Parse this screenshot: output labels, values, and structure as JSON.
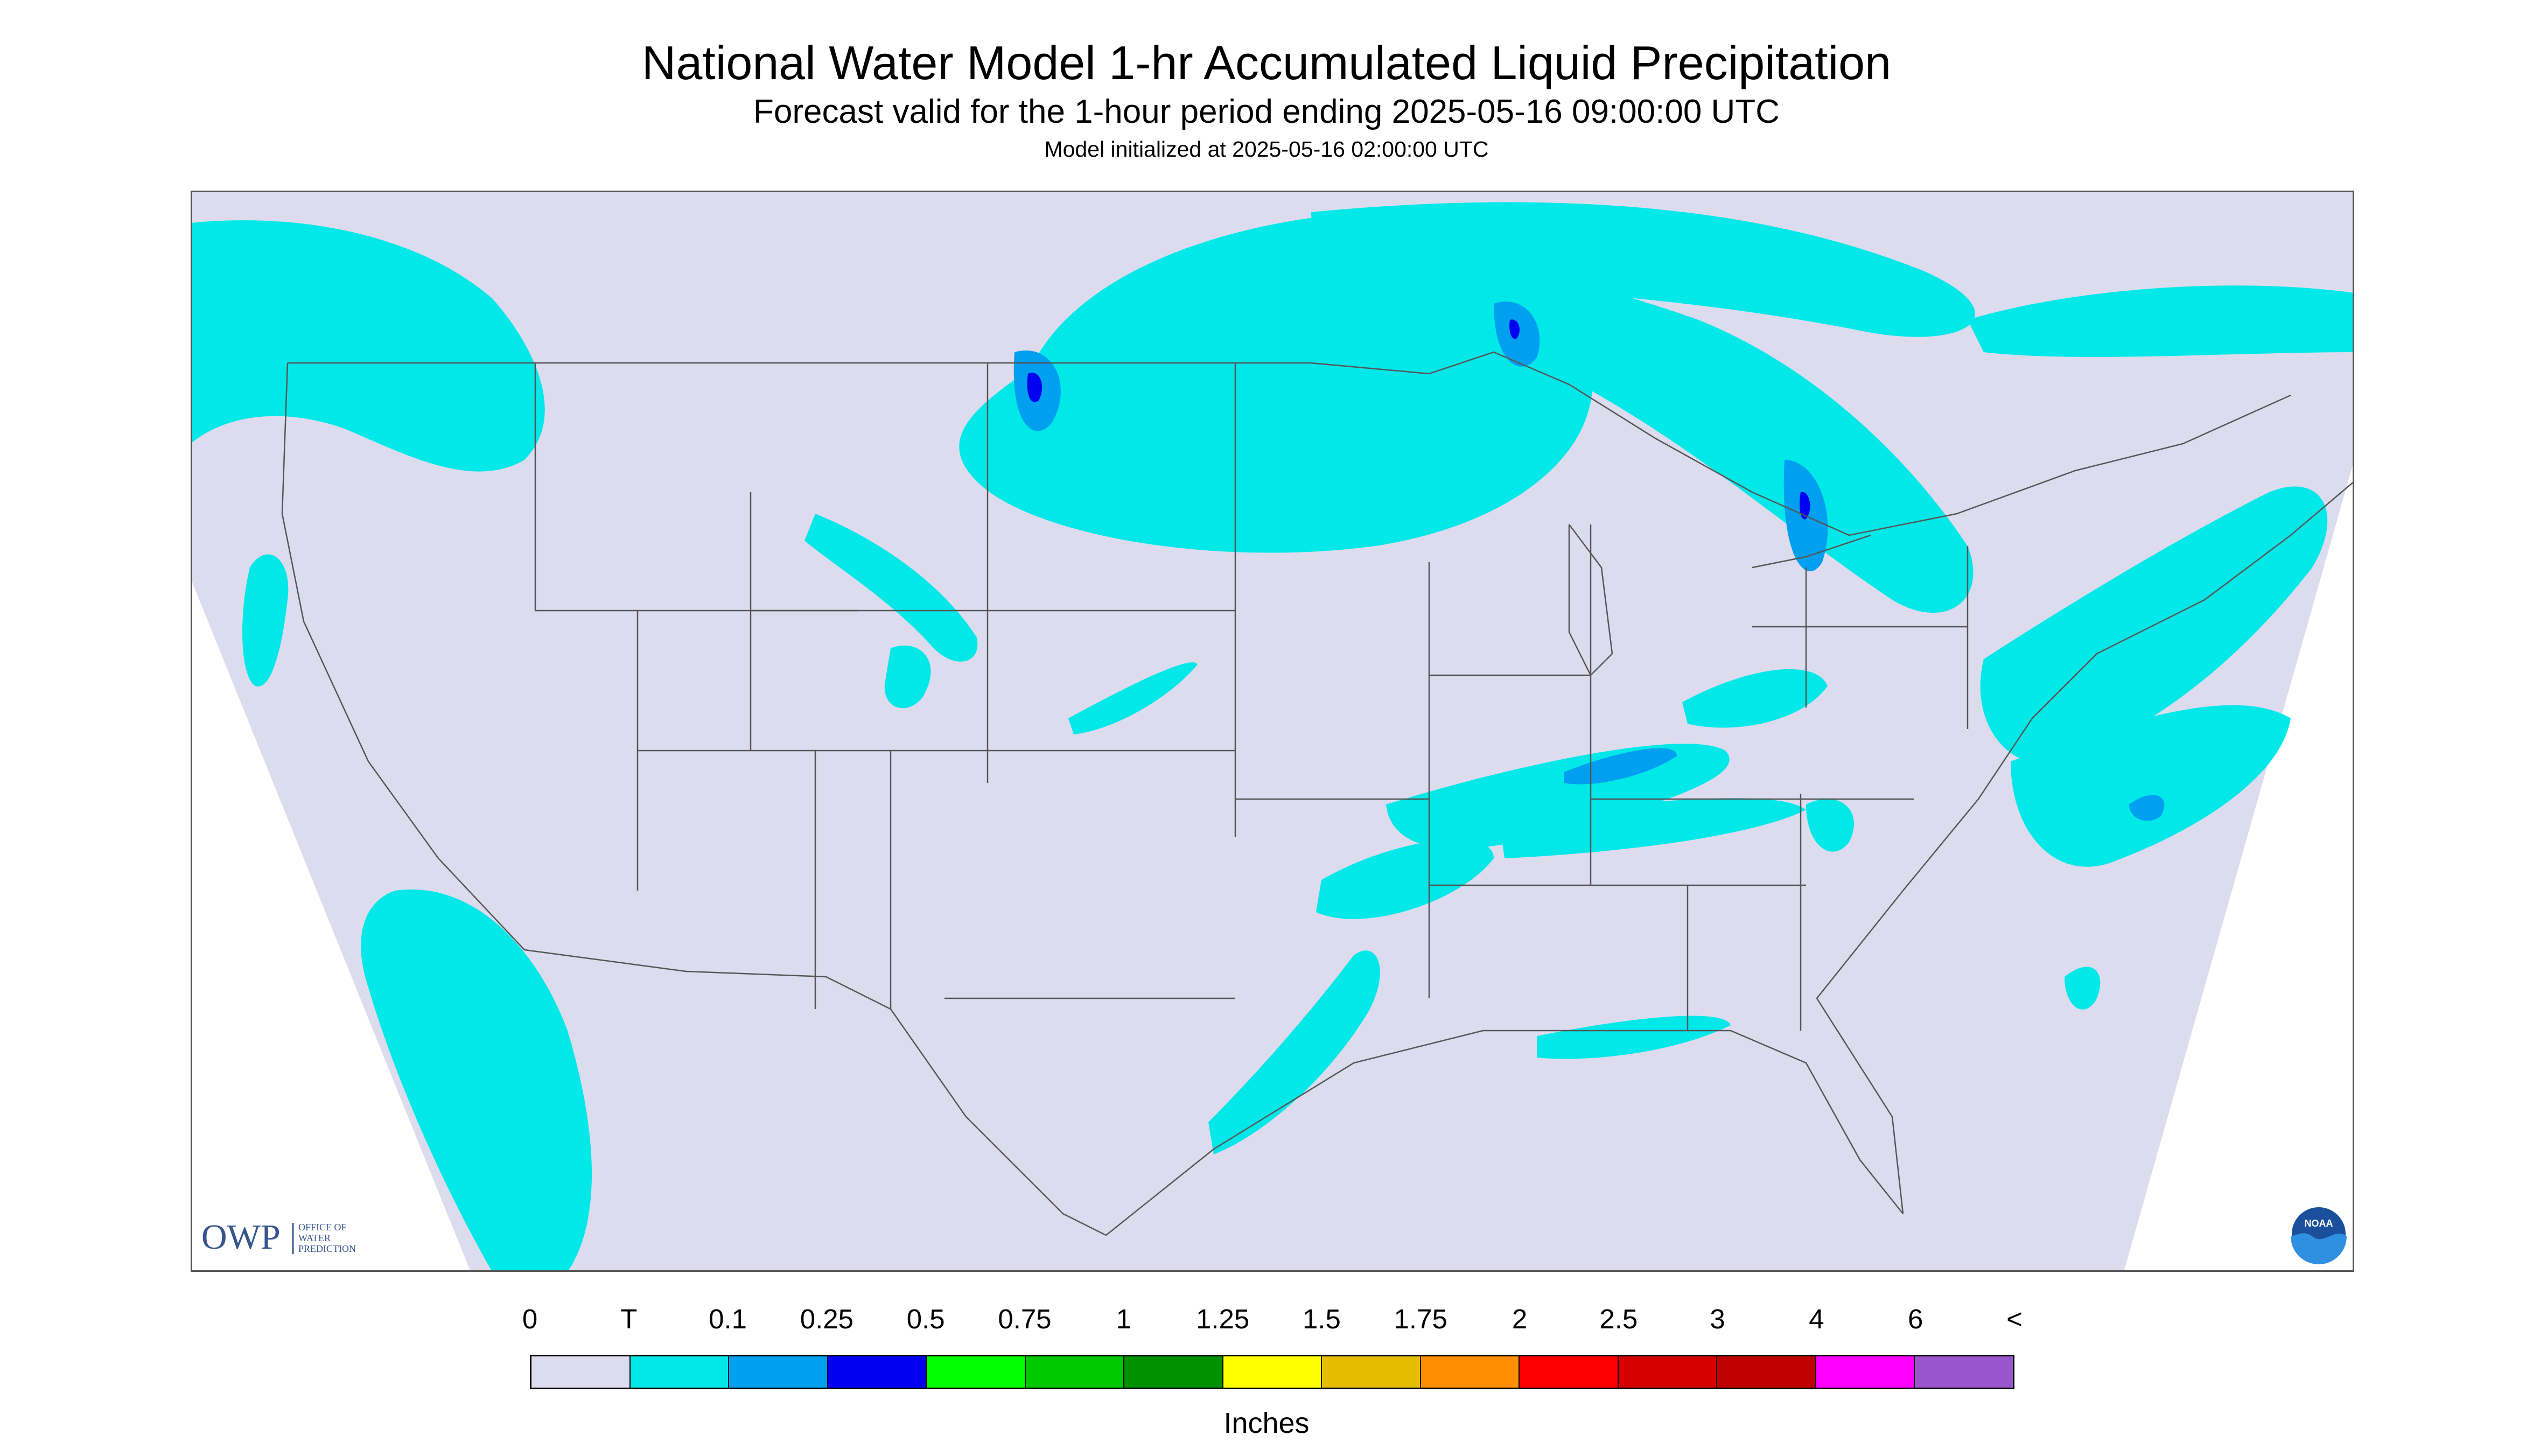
{
  "title": "National Water Model 1-hr Accumulated Liquid Precipitation",
  "subtitle": "Forecast valid for the 1-hour period ending 2025-05-16 09:00:00 UTC",
  "init_line": "Model initialized at 2025-05-16 02:00:00 UTC",
  "logos": {
    "owp_mark": "OWP",
    "owp_text": [
      "OFFICE OF",
      "WATER",
      "PREDICTION"
    ],
    "noaa_mark": "NOAA"
  },
  "colors": {
    "background": "#dcdcee",
    "no_data": "#ffffff",
    "border_lines": "#555555"
  },
  "legend": {
    "units": "Inches",
    "labels": [
      "0",
      "T",
      "0.1",
      "0.25",
      "0.5",
      "0.75",
      "1",
      "1.25",
      "1.5",
      "1.75",
      "2",
      "2.5",
      "3",
      "4",
      "6",
      "<"
    ],
    "colors": [
      "#dcdcee",
      "#00e8e8",
      "#009fef",
      "#0000f0",
      "#00ff00",
      "#00c800",
      "#009000",
      "#ffff00",
      "#e6bc00",
      "#ff8e00",
      "#ff0000",
      "#d60000",
      "#c00000",
      "#ff00ff",
      "#9955cc"
    ]
  }
}
